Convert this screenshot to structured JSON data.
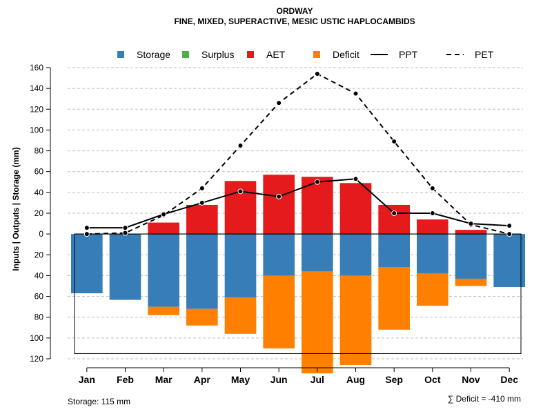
{
  "chart_data": {
    "type": "bar",
    "title": "ORDWAY",
    "subtitle": "FINE, MIXED, SUPERACTIVE, MESIC USTIC HAPLOCAMBIDS",
    "ylabel": "Inputs | Outputs | Storage     (mm)",
    "ylim": [
      -120,
      160
    ],
    "y_ticks": [
      160,
      140,
      120,
      100,
      80,
      60,
      40,
      20,
      0,
      -20,
      -40,
      -60,
      -80,
      -100,
      -120
    ],
    "y_tick_labels": [
      "160",
      "140",
      "120",
      "100",
      "80",
      "60",
      "40",
      "20",
      "0",
      "20",
      "40",
      "60",
      "80",
      "100",
      "120"
    ],
    "categories": [
      "Jan",
      "Feb",
      "Mar",
      "Apr",
      "May",
      "Jun",
      "Jul",
      "Aug",
      "Sep",
      "Oct",
      "Nov",
      "Dec"
    ],
    "grid": true,
    "legend_position": "top",
    "legend": [
      {
        "name": "Storage",
        "kind": "box",
        "color": "#377eb8"
      },
      {
        "name": "Surplus",
        "kind": "box",
        "color": "#4daf4a"
      },
      {
        "name": "AET",
        "kind": "box",
        "color": "#e41a1c"
      },
      {
        "name": "Deficit",
        "kind": "box",
        "color": "#ff7f00"
      },
      {
        "name": "PPT",
        "kind": "solid-line",
        "color": "#000000"
      },
      {
        "name": "PET",
        "kind": "dashed-line",
        "color": "#000000"
      }
    ],
    "series": [
      {
        "name": "Storage",
        "color": "#377eb8",
        "values": [
          -57,
          -63,
          -70,
          -72,
          -61,
          -40,
          -36,
          -40,
          -32,
          -38,
          -43,
          -51
        ]
      },
      {
        "name": "Surplus",
        "color": "#4daf4a",
        "values": [
          0,
          0,
          0,
          0,
          0,
          0,
          0,
          0,
          0,
          0,
          0,
          0
        ]
      },
      {
        "name": "AET",
        "color": "#e41a1c",
        "values": [
          0,
          0,
          11,
          28,
          51,
          57,
          55,
          49,
          28,
          14,
          4,
          0
        ]
      },
      {
        "name": "Deficit",
        "color": "#ff7f00",
        "values": [
          0,
          0.5,
          8,
          16,
          35,
          70,
          98,
          86,
          60,
          31,
          7,
          0
        ]
      },
      {
        "name": "PPT",
        "color": "#000000",
        "values": [
          6,
          6,
          19,
          30,
          41,
          36,
          50,
          53,
          20,
          20,
          10,
          8
        ]
      },
      {
        "name": "PET",
        "color": "#000000",
        "values": [
          0,
          1,
          18,
          44,
          85,
          126,
          154,
          135,
          89,
          44,
          9,
          0
        ]
      }
    ],
    "storage_capacity": 115,
    "annotations": {
      "storage": "Storage: 115 mm",
      "deficit": "∑ Deficit = -410 mm"
    }
  }
}
